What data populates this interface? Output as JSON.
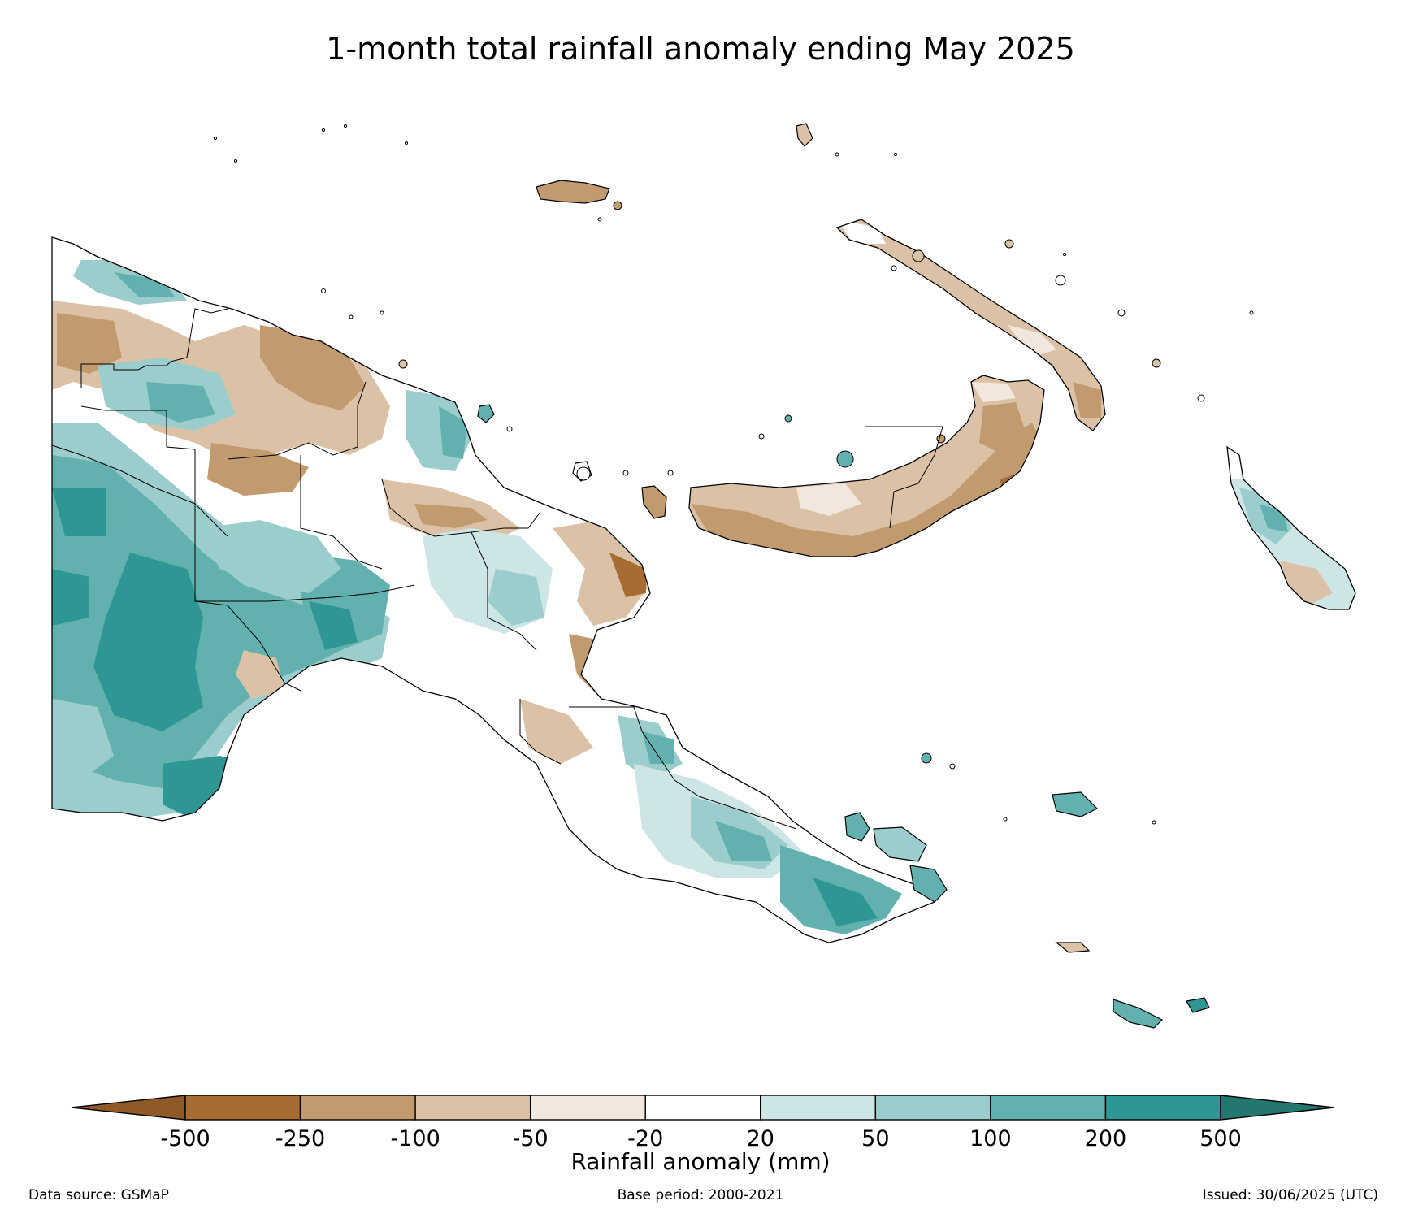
{
  "title": "1-month total rainfall anomaly ending May 2025",
  "colorbar": {
    "label": "Rainfall anomaly (mm)",
    "ticks": [
      "-500",
      "-250",
      "-100",
      "-50",
      "-20",
      "20",
      "50",
      "100",
      "200",
      "500"
    ],
    "colors": [
      "#a76c31",
      "#c29a6f",
      "#dbc2a6",
      "#f2e7dc",
      "#ffffff",
      "#cde6e5",
      "#9acdcb",
      "#63b1ae",
      "#2e9793"
    ],
    "extend_low_color": "#8f5a27",
    "extend_high_color": "#24776f"
  },
  "footer": {
    "source": "Data source: GSMaP",
    "base_period": "Base period: 2000-2021",
    "issued": "Issued: 30/06/2025 (UTC)"
  }
}
